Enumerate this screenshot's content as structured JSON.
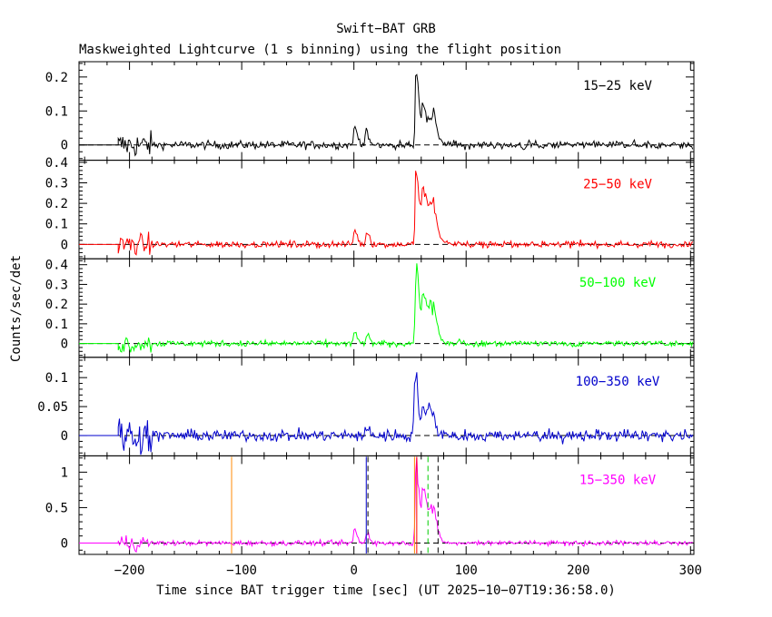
{
  "chart_data": {
    "type": "line",
    "title": "Swift−BAT GRB",
    "subtitle": "Maskweighted Lightcurve (1 s binning) using the flight position",
    "xlabel": "Time since BAT trigger time [sec] (UT 2025−10−07T19:36:58.0)",
    "ylabel": "Counts/sec/det",
    "xlim": [
      -245,
      303
    ],
    "x_ticks": [
      -200,
      -100,
      0,
      100,
      200,
      300
    ],
    "x_tick_labels": [
      "−200",
      "−100",
      "0",
      "100",
      "200",
      "300"
    ],
    "panels": [
      {
        "band": "15−25 keV",
        "color": "#000000",
        "ylim": [
          -0.045,
          0.245
        ],
        "y_ticks": [
          0,
          0.1,
          0.2
        ],
        "y_tick_labels": [
          "0",
          "0.1",
          "0.2"
        ],
        "noise": 0.006,
        "pulses": [
          [
            1,
            2.5,
            0.045
          ],
          [
            11,
            2,
            0.04
          ],
          [
            56,
            2,
            0.2
          ],
          [
            62,
            3,
            0.12
          ],
          [
            69,
            4,
            0.08
          ]
        ]
      },
      {
        "band": "25−50 keV",
        "color": "#ff0000",
        "ylim": [
          -0.07,
          0.41
        ],
        "y_ticks": [
          0,
          0.1,
          0.2,
          0.3,
          0.4
        ],
        "y_tick_labels": [
          "0",
          "0.1",
          "0.2",
          "0.3",
          "0.4"
        ],
        "noise": 0.008,
        "pulses": [
          [
            1,
            2,
            0.07
          ],
          [
            12,
            2,
            0.06
          ],
          [
            56,
            2,
            0.36
          ],
          [
            62,
            3,
            0.28
          ],
          [
            69,
            4,
            0.18
          ]
        ]
      },
      {
        "band": "50−100 keV",
        "color": "#00ff00",
        "ylim": [
          -0.07,
          0.43
        ],
        "y_ticks": [
          0,
          0.1,
          0.2,
          0.3,
          0.4
        ],
        "y_tick_labels": [
          "0",
          "0.1",
          "0.2",
          "0.3",
          "0.4"
        ],
        "noise": 0.008,
        "pulses": [
          [
            1,
            2,
            0.05
          ],
          [
            12,
            2,
            0.04
          ],
          [
            56,
            2,
            0.38
          ],
          [
            62,
            3,
            0.25
          ],
          [
            69,
            4,
            0.17
          ]
        ]
      },
      {
        "band": "100−350 keV",
        "color": "#0000cc",
        "ylim": [
          -0.035,
          0.135
        ],
        "y_ticks": [
          0,
          0.05,
          0.1
        ],
        "y_tick_labels": [
          "0",
          "0.05",
          "0.1"
        ],
        "noise": 0.005,
        "pulses": [
          [
            12,
            2,
            0.012
          ],
          [
            55,
            2,
            0.11
          ],
          [
            62,
            3,
            0.05
          ],
          [
            68,
            3,
            0.045
          ]
        ]
      },
      {
        "band": "15−350 keV",
        "color": "#ff00ff",
        "ylim": [
          -0.16,
          1.23
        ],
        "y_ticks": [
          0,
          0.5,
          1
        ],
        "y_tick_labels": [
          "0",
          "0.5",
          "1"
        ],
        "noise": 0.018,
        "pulses": [
          [
            1,
            2,
            0.18
          ],
          [
            12,
            2,
            0.14
          ],
          [
            56,
            2,
            1.1
          ],
          [
            62,
            3,
            0.75
          ],
          [
            69,
            4,
            0.45
          ]
        ]
      }
    ],
    "bottom_markers": [
      {
        "t": -109,
        "color": "#ff8800",
        "style": "solid",
        "label": "orange"
      },
      {
        "t": 11,
        "color": "#0000cc",
        "style": "solid",
        "label": "blue-solid"
      },
      {
        "t": 12.5,
        "color": "#000000",
        "style": "dashed",
        "label": "black-dashed-start"
      },
      {
        "t": 54,
        "color": "#ff8800",
        "style": "solid",
        "label": "orange-2"
      },
      {
        "t": 56,
        "color": "#ff0000",
        "style": "solid",
        "label": "red"
      },
      {
        "t": 66,
        "color": "#00cc00",
        "style": "dashed",
        "label": "green-dashed"
      },
      {
        "t": 75,
        "color": "#000000",
        "style": "dashed",
        "label": "black-dashed-end"
      }
    ]
  }
}
